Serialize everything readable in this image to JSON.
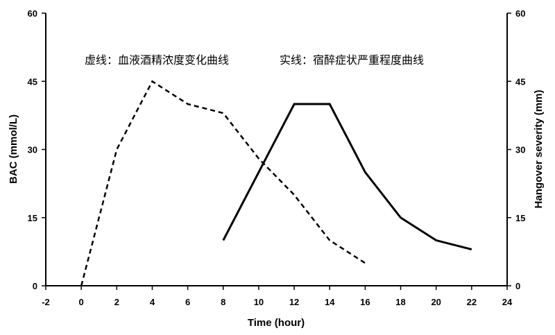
{
  "chart_data": {
    "type": "line",
    "xlabel": "Time (hour)",
    "ylabel_left": "BAC (mmol/L)",
    "ylabel_right": "Hangover severity (mm)",
    "xlim": [
      -2,
      24
    ],
    "ylim_left": [
      0,
      60
    ],
    "ylim_right": [
      0,
      60
    ],
    "x_ticks": [
      -2,
      0,
      2,
      4,
      6,
      8,
      10,
      12,
      14,
      16,
      18,
      20,
      22,
      24
    ],
    "y_ticks_left": [
      0,
      15,
      30,
      45,
      60
    ],
    "y_ticks_right": [
      0,
      15,
      30,
      45,
      60
    ],
    "grid": false,
    "annotation_dashed": "虚线：血液酒精浓度变化曲线",
    "annotation_solid": "实线：宿醉症状严重程度曲线",
    "series": [
      {
        "axis": "left",
        "style": "dashed",
        "color": "#000000",
        "x": [
          0,
          2,
          4,
          6,
          8,
          10,
          12,
          14,
          16
        ],
        "y": [
          0,
          30,
          45,
          40,
          38,
          28,
          20,
          10,
          5
        ]
      },
      {
        "axis": "right",
        "style": "solid",
        "color": "#000000",
        "x": [
          8,
          12,
          14,
          16,
          18,
          20,
          22
        ],
        "y": [
          10,
          40,
          40,
          25,
          15,
          10,
          8
        ]
      }
    ]
  }
}
